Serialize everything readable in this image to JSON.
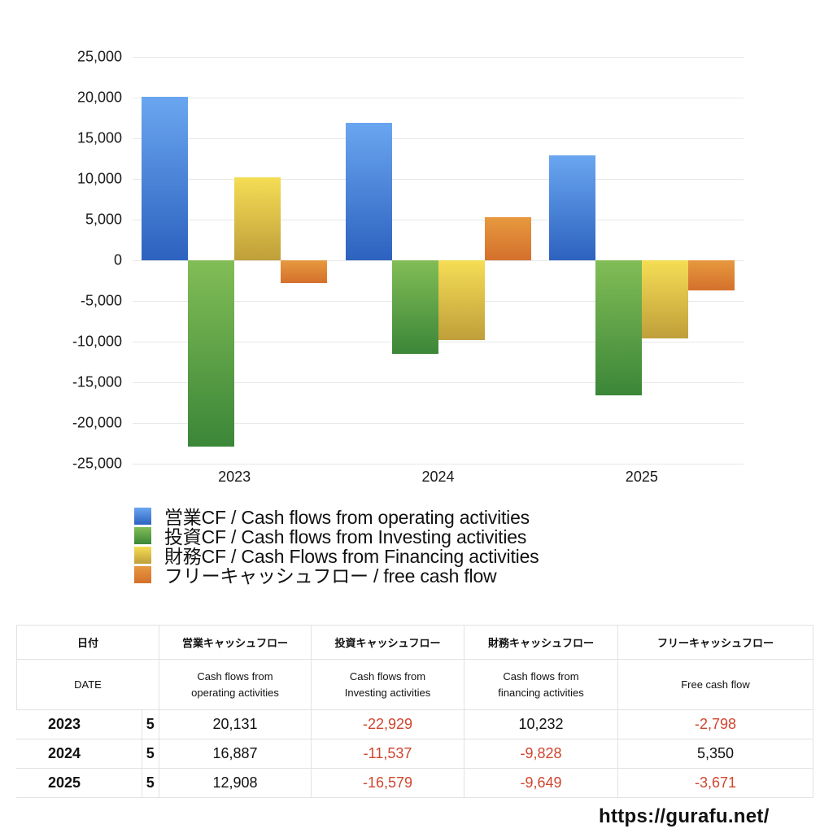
{
  "chart_data": {
    "type": "bar",
    "title": "",
    "xlabel": "",
    "ylabel": "",
    "categories": [
      "2023",
      "2024",
      "2025"
    ],
    "series": [
      {
        "name": "営業CF / Cash flows from operating activities",
        "values": [
          20131,
          16887,
          12908
        ],
        "color_top": "#6aa6f0",
        "color_bottom": "#2d62bf"
      },
      {
        "name": "投資CF / Cash flows from Investing activities",
        "values": [
          -22929,
          -11537,
          -16579
        ],
        "color_top": "#82bd56",
        "color_bottom": "#3b8638"
      },
      {
        "name": "財務CF / Cash Flows from Financing activities",
        "values": [
          10232,
          -9828,
          -9649
        ],
        "color_top": "#f5dd55",
        "color_bottom": "#bf9f3a"
      },
      {
        "name": "フリーキャッシュフロー / free cash flow",
        "values": [
          -2798,
          5350,
          -3671
        ],
        "color_top": "#e7993f",
        "color_bottom": "#d4702c"
      }
    ],
    "ylim": [
      -25000,
      25000
    ],
    "yticks": [
      "25,000",
      "20,000",
      "15,000",
      "10,000",
      "5,000",
      "0",
      "-5,000",
      "-10,000",
      "-15,000",
      "-20,000",
      "-25,000"
    ],
    "grid": true,
    "legend_position": "bottom"
  },
  "table": {
    "header_jp": {
      "date": "日付",
      "operating": "営業キャッシュフロー",
      "investing": "投資キャッシュフロー",
      "financing": "財務キャッシュフロー",
      "free": "フリーキャッシュフロー"
    },
    "header_en": {
      "date": "DATE",
      "operating_l1": "Cash flows from",
      "operating_l2": "operating activities",
      "investing_l1": "Cash flows from",
      "investing_l2": "Investing activities",
      "financing_l1": "Cash flows from",
      "financing_l2": "financing activities",
      "free": "Free cash flow"
    },
    "rows": [
      {
        "year": "2023",
        "month": "5",
        "operating": "20,131",
        "investing": "-22,929",
        "financing": "10,232",
        "free": "-2,798"
      },
      {
        "year": "2024",
        "month": "5",
        "operating": "16,887",
        "investing": "-11,537",
        "financing": "-9,828",
        "free": "5,350"
      },
      {
        "year": "2025",
        "month": "5",
        "operating": "12,908",
        "investing": "-16,579",
        "financing": "-9,649",
        "free": "-3,671"
      }
    ]
  },
  "footer": {
    "url": "https://gurafu.net/"
  }
}
